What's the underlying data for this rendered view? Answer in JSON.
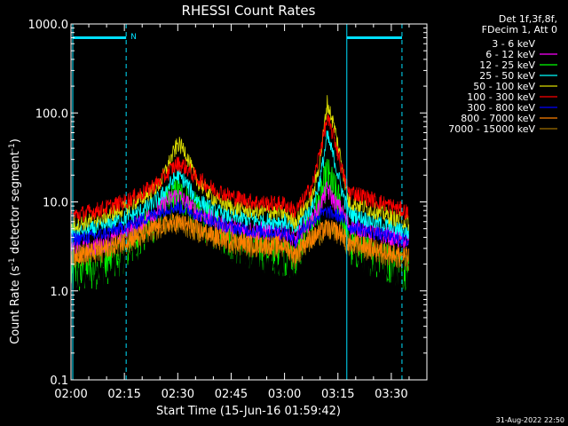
{
  "chart_data": {
    "type": "line",
    "title": "RHESSI Count Rates",
    "xlabel": "Start Time (15-Jun-16 01:59:42)",
    "ylabel_main": "Count Rate (s",
    "ylabel_sup1": "-1",
    "ylabel_mid": " detector segment",
    "ylabel_sup2": "-1",
    "ylabel_end": ")",
    "yscale": "log",
    "ylim": [
      0.1,
      1000
    ],
    "xlim_minutes": [
      0,
      100
    ],
    "x_ticks": [
      {
        "min": 0,
        "label": "02:00"
      },
      {
        "min": 15,
        "label": "02:15"
      },
      {
        "min": 30,
        "label": "02:30"
      },
      {
        "min": 45,
        "label": "02:45"
      },
      {
        "min": 60,
        "label": "03:00"
      },
      {
        "min": 75,
        "label": "03:15"
      },
      {
        "min": 90,
        "label": "03:30"
      }
    ],
    "y_ticks": [
      {
        "value": 0.1,
        "label": "0.1"
      },
      {
        "value": 1,
        "label": "1.0"
      },
      {
        "value": 10,
        "label": "10.0"
      },
      {
        "value": 100,
        "label": "100.0"
      },
      {
        "value": 1000,
        "label": "1000.0"
      }
    ],
    "legend_header": [
      "Det 1f,3f,8f,",
      "FDecim 1, Att 0"
    ],
    "series": [
      {
        "name": "3 - 6 keV",
        "color": "#000000",
        "x": [
          0,
          5,
          10,
          15,
          20,
          25,
          28,
          30,
          32,
          35,
          40,
          45,
          50,
          55,
          60,
          63,
          65,
          68,
          70,
          72,
          74,
          76,
          78,
          80,
          85,
          90,
          95
        ],
        "y": [
          1.2,
          1.3,
          1.6,
          2.2,
          3.5,
          5.5,
          6.2,
          6.5,
          6.0,
          5.0,
          3.8,
          2.8,
          2.3,
          2.0,
          2.0,
          1.5,
          2.8,
          3.5,
          4.2,
          4.8,
          4.0,
          3.6,
          2.5,
          2.6,
          2.0,
          1.6,
          1.3
        ]
      },
      {
        "name": "6 - 12 keV",
        "color": "#ff00ff",
        "x": [
          0,
          5,
          10,
          15,
          20,
          25,
          28,
          30,
          32,
          35,
          40,
          45,
          50,
          55,
          60,
          63,
          65,
          68,
          70,
          72,
          74,
          76,
          78,
          80,
          85,
          90,
          95
        ],
        "y": [
          2.8,
          3.0,
          3.5,
          4.3,
          6.0,
          8.5,
          11,
          12,
          10,
          8.0,
          6.2,
          5.2,
          4.8,
          4.7,
          4.5,
          3.6,
          5.0,
          6.5,
          9.0,
          14,
          10,
          8.0,
          5.5,
          5.2,
          4.5,
          4.0,
          3.5
        ]
      },
      {
        "name": "12 - 25 keV",
        "color": "#00ff00",
        "x": [
          0,
          5,
          10,
          15,
          20,
          25,
          28,
          30,
          32,
          35,
          40,
          45,
          50,
          55,
          60,
          63,
          65,
          68,
          70,
          72,
          74,
          76,
          78,
          80,
          85,
          90,
          95
        ],
        "y": [
          1.5,
          1.6,
          2.0,
          2.7,
          4.2,
          7.0,
          10,
          12,
          10,
          7.5,
          5.0,
          3.7,
          3.0,
          2.7,
          2.5,
          2.0,
          3.5,
          6.0,
          10,
          20,
          13,
          8.0,
          3.0,
          3.0,
          2.5,
          2.0,
          1.7
        ]
      },
      {
        "name": "25 - 50 keV",
        "color": "#00ffff",
        "x": [
          0,
          5,
          10,
          15,
          20,
          25,
          28,
          30,
          32,
          35,
          40,
          45,
          50,
          55,
          60,
          63,
          65,
          68,
          70,
          72,
          74,
          76,
          78,
          80,
          85,
          90,
          95
        ],
        "y": [
          4.5,
          4.8,
          5.5,
          6.5,
          8.0,
          11,
          16,
          20,
          17,
          11,
          8.0,
          6.8,
          6.3,
          6.1,
          6.0,
          4.8,
          6.5,
          9.0,
          18,
          55,
          30,
          14,
          7.5,
          7.0,
          6.0,
          5.2,
          4.5
        ]
      },
      {
        "name": "50 - 100 keV",
        "color": "#dddd00",
        "x": [
          0,
          5,
          10,
          15,
          20,
          25,
          28,
          30,
          32,
          35,
          40,
          45,
          50,
          55,
          60,
          63,
          65,
          68,
          70,
          72,
          74,
          76,
          78,
          80,
          85,
          90,
          95
        ],
        "y": [
          5.5,
          6.0,
          7.0,
          8.5,
          11,
          16,
          30,
          45,
          38,
          18,
          11,
          8.8,
          8.0,
          7.7,
          7.5,
          6.0,
          8.0,
          12,
          30,
          130,
          70,
          28,
          10,
          9.5,
          8.0,
          6.8,
          5.8
        ]
      },
      {
        "name": "100 - 300 keV",
        "color": "#ff0000",
        "x": [
          0,
          5,
          10,
          15,
          20,
          25,
          28,
          30,
          32,
          35,
          40,
          45,
          50,
          55,
          60,
          63,
          65,
          68,
          70,
          72,
          74,
          76,
          78,
          80,
          85,
          90,
          95
        ],
        "y": [
          7.0,
          7.6,
          8.6,
          10,
          12.5,
          17,
          23,
          27,
          25,
          19,
          14,
          11.5,
          10.2,
          9.6,
          9.5,
          7.8,
          10,
          16,
          38,
          85,
          52,
          24,
          13,
          12.5,
          10.5,
          9.0,
          7.5
        ]
      },
      {
        "name": "300 - 800 keV",
        "color": "#0000ff",
        "x": [
          0,
          5,
          10,
          15,
          20,
          25,
          28,
          30,
          32,
          35,
          40,
          45,
          50,
          55,
          60,
          63,
          65,
          68,
          70,
          72,
          74,
          76,
          78,
          80,
          85,
          90,
          95
        ],
        "y": [
          3.8,
          4.0,
          4.5,
          5.2,
          6.3,
          7.8,
          8.6,
          8.8,
          8.4,
          7.4,
          6.0,
          5.2,
          4.8,
          4.6,
          4.6,
          3.6,
          5.0,
          6.2,
          7.2,
          7.8,
          7.2,
          6.8,
          5.2,
          5.2,
          4.5,
          4.0,
          3.6
        ]
      },
      {
        "name": "800 - 7000 keV",
        "color": "#ff8000",
        "x": [
          0,
          5,
          10,
          15,
          20,
          25,
          28,
          30,
          32,
          35,
          40,
          45,
          50,
          55,
          60,
          63,
          65,
          68,
          70,
          72,
          74,
          76,
          78,
          80,
          85,
          90,
          95
        ],
        "y": [
          2.5,
          2.7,
          3.0,
          3.6,
          4.4,
          5.4,
          5.8,
          5.9,
          5.6,
          5.0,
          4.2,
          3.7,
          3.4,
          3.3,
          3.3,
          2.5,
          3.4,
          4.0,
          4.6,
          5.0,
          4.8,
          4.4,
          3.4,
          3.4,
          3.0,
          2.7,
          2.4
        ]
      },
      {
        "name": "7000 - 15000 keV",
        "color": "#a07000",
        "x": [
          0,
          5,
          10,
          15,
          20,
          25,
          28,
          30,
          32,
          35,
          40,
          45,
          50,
          55,
          60,
          63,
          65,
          68,
          70,
          72,
          74,
          76,
          78,
          80,
          85,
          90,
          95
        ],
        "y": [
          2.4,
          2.6,
          2.9,
          3.4,
          4.2,
          5.2,
          5.6,
          5.7,
          5.4,
          4.8,
          4.0,
          3.5,
          3.2,
          3.1,
          3.1,
          2.3,
          3.2,
          3.8,
          4.4,
          4.8,
          4.6,
          4.2,
          3.2,
          3.2,
          2.8,
          2.5,
          2.2
        ]
      }
    ],
    "state_bars": [
      {
        "x_min_start": 0.5,
        "x_min_end": 15.5,
        "value": 700
      },
      {
        "x_min_start": 77.5,
        "x_min_end": 93,
        "value": 700
      }
    ],
    "state_lines": [
      {
        "x_min": 0.5,
        "style": "solid"
      },
      {
        "x_min": 15.5,
        "style": "dashed"
      },
      {
        "x_min": 77.5,
        "style": "solid"
      },
      {
        "x_min": 93,
        "style": "dashed"
      }
    ],
    "state_label": "N",
    "state_color": "#00e0ff",
    "timestamp": "31-Aug-2022 22:50"
  }
}
